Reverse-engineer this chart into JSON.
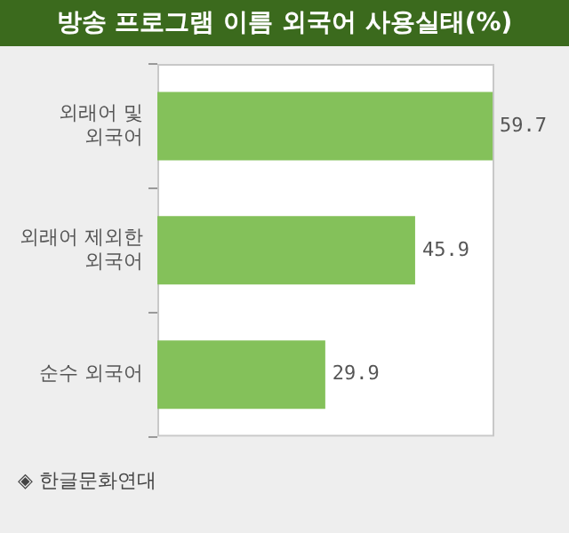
{
  "chart_data": {
    "type": "bar",
    "orientation": "horizontal",
    "title": "방송 프로그램 이름 외국어 사용실태(%)",
    "categories": [
      "외래어 및 외국어",
      "외래어 제외한 외국어",
      "순수 외국어"
    ],
    "values": [
      59.7,
      45.9,
      29.9
    ],
    "color": "#84c15a",
    "data_labels": true,
    "tick_labels": "y",
    "legend": false,
    "annotations": [
      "◈ 한글문화연대"
    ]
  }
}
